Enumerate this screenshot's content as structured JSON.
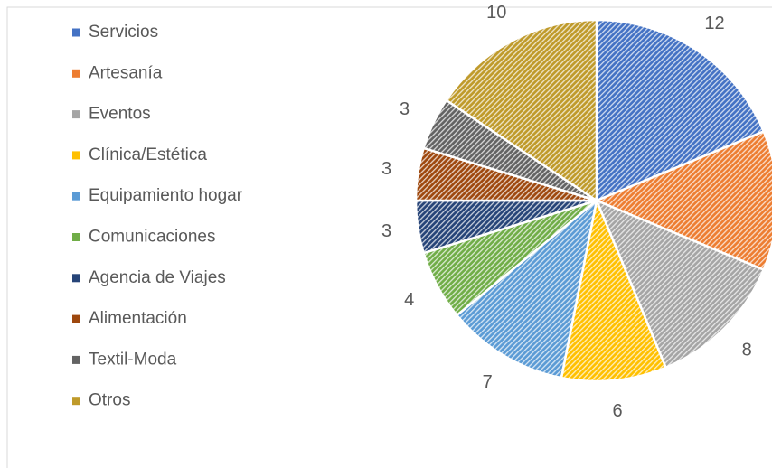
{
  "chart_data": {
    "type": "pie",
    "categories": [
      "Servicios",
      "Artesanía",
      "Eventos",
      "Clínica/Estética",
      "Equipamiento hogar",
      "Comunicaciones",
      "Agencia de Viajes",
      "Alimentación",
      "Textil-Moda",
      "Otros"
    ],
    "values": [
      12,
      8,
      8,
      6,
      7,
      4,
      3,
      3,
      3,
      10
    ],
    "colors": [
      "#4472c4",
      "#ed7d31",
      "#a5a5a5",
      "#ffc000",
      "#5b9bd5",
      "#70ad47",
      "#264478",
      "#9e480e",
      "#636363",
      "#bf9a2a"
    ],
    "legend": "left"
  }
}
